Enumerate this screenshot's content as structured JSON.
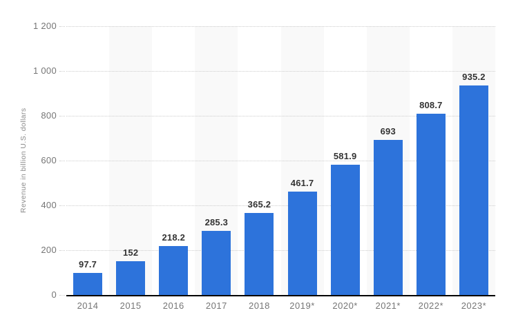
{
  "chart_data": {
    "type": "bar",
    "categories": [
      "2014",
      "2015",
      "2016",
      "2017",
      "2018",
      "2019*",
      "2020*",
      "2021*",
      "2022*",
      "2023*"
    ],
    "values": [
      97.7,
      152,
      218.2,
      285.3,
      365.2,
      461.7,
      581.9,
      693,
      808.7,
      935.2
    ],
    "value_labels": [
      "97.7",
      "152",
      "218.2",
      "285.3",
      "365.2",
      "461.7",
      "581.9",
      "693",
      "808.7",
      "935.2"
    ],
    "title": "",
    "xlabel": "",
    "ylabel": "Revenue in billion U.S. dollars",
    "ylim": [
      0,
      1200
    ],
    "ytick_interval": 200,
    "ytick_labels": [
      "0",
      "200",
      "400",
      "600",
      "800",
      "1 000",
      "1 200"
    ],
    "grid": "horizontal-dotted",
    "legend": "none",
    "colors": {
      "bar": "#2d73db",
      "column_band": "#f9f9f9",
      "gridline": "#cccccc",
      "axis_line": "#000000",
      "value_label": "#333333",
      "tick_label": "#757575",
      "axis_title": "#8a8a8a",
      "background": "#ffffff"
    }
  }
}
